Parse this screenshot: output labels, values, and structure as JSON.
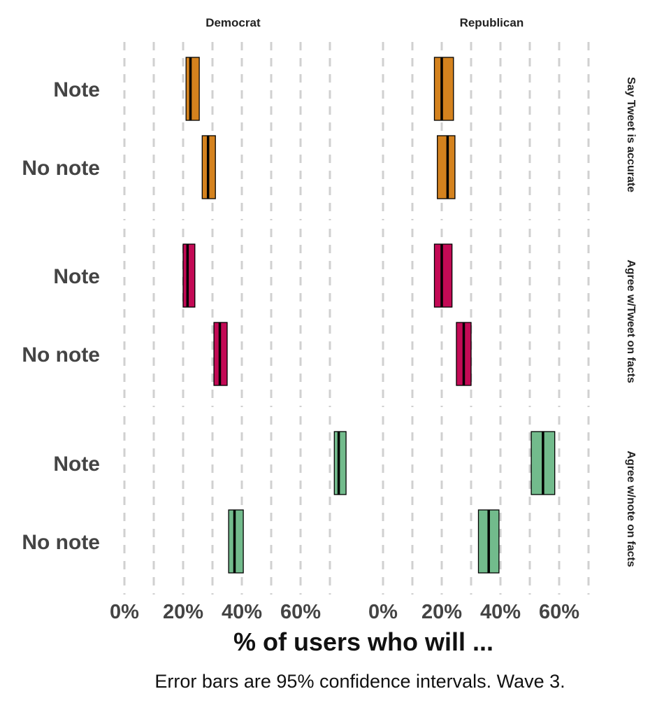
{
  "chart_data": {
    "type": "errorbar",
    "x_title": "% of users who will ...",
    "caption": "Error bars are 95% confidence intervals. Wave 3.",
    "xlim": [
      0,
      70
    ],
    "x_ticks": [
      0,
      20,
      40,
      60
    ],
    "x_tick_labels": [
      "0%",
      "20%",
      "40%",
      "60%"
    ],
    "panels": [
      "Democrat",
      "Republican"
    ],
    "facets": [
      {
        "label": "Say Tweet is accurate",
        "color": "#D4821E",
        "rows": [
          {
            "label": "Note",
            "Democrat": {
              "estimate": 22.5,
              "low": 21.0,
              "high": 25.5
            },
            "Republican": {
              "estimate": 20.0,
              "low": 17.5,
              "high": 24.0
            }
          },
          {
            "label": "No note",
            "Democrat": {
              "estimate": 28.5,
              "low": 26.5,
              "high": 31.0
            },
            "Republican": {
              "estimate": 22.0,
              "low": 18.5,
              "high": 24.5
            }
          }
        ]
      },
      {
        "label": "Agree w/Tweet on facts",
        "color": "#C30A55",
        "rows": [
          {
            "label": "Note",
            "Democrat": {
              "estimate": 21.5,
              "low": 20.0,
              "high": 24.0
            },
            "Republican": {
              "estimate": 20.0,
              "low": 17.5,
              "high": 23.5
            }
          },
          {
            "label": "No note",
            "Democrat": {
              "estimate": 32.5,
              "low": 30.5,
              "high": 35.0
            },
            "Republican": {
              "estimate": 27.5,
              "low": 25.0,
              "high": 30.0
            }
          }
        ]
      },
      {
        "label": "Agree w/note on facts",
        "color": "#72BB8C",
        "rows": [
          {
            "label": "Note",
            "Democrat": {
              "estimate": 73.0,
              "low": 71.5,
              "high": 75.5
            },
            "Republican": {
              "estimate": 54.5,
              "low": 50.5,
              "high": 58.5
            }
          },
          {
            "label": "No note",
            "Democrat": {
              "estimate": 37.5,
              "low": 35.5,
              "high": 40.5
            },
            "Republican": {
              "estimate": 36.0,
              "low": 32.5,
              "high": 39.5
            }
          }
        ]
      }
    ]
  }
}
